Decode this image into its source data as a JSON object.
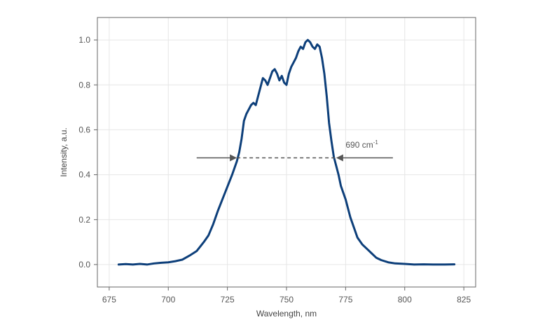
{
  "chart_data": {
    "type": "line",
    "xlabel": "Wavelength, nm",
    "ylabel": "Intensity, a.u.",
    "xlim": [
      670,
      830
    ],
    "ylim": [
      -0.1,
      1.1
    ],
    "xticks": [
      675,
      700,
      725,
      750,
      775,
      800,
      825
    ],
    "yticks": [
      0.0,
      0.2,
      0.4,
      0.6,
      0.8,
      1.0
    ],
    "xtick_labels": [
      "675",
      "700",
      "725",
      "750",
      "775",
      "800",
      "825"
    ],
    "ytick_labels": [
      "0.0",
      "0.2",
      "0.4",
      "0.6",
      "0.8",
      "1.0"
    ],
    "grid": true,
    "series_color": "#0d3f7a",
    "series": [
      {
        "x": [
          679,
          682,
          685,
          688,
          691,
          694,
          697,
          700,
          703,
          706,
          709,
          712,
          715,
          717,
          719,
          721,
          722.5,
          724,
          725.5,
          727,
          728,
          729,
          730,
          731,
          732,
          733,
          734,
          735,
          736,
          737,
          738,
          739,
          740,
          741,
          742,
          743,
          744,
          745,
          746,
          747,
          748,
          749,
          750,
          751,
          752,
          753,
          754,
          755,
          756,
          757,
          758,
          759,
          760,
          761,
          762,
          763,
          764,
          765,
          766,
          767,
          768,
          769,
          770,
          771,
          772,
          773,
          774,
          775,
          776,
          777,
          778,
          779,
          780,
          782,
          784,
          786,
          788,
          790,
          793,
          796,
          800,
          804,
          808,
          812,
          816,
          821
        ],
        "y": [
          0.0,
          0.002,
          0.0,
          0.003,
          0.0,
          0.005,
          0.008,
          0.01,
          0.015,
          0.022,
          0.04,
          0.06,
          0.1,
          0.13,
          0.18,
          0.24,
          0.28,
          0.32,
          0.36,
          0.4,
          0.43,
          0.46,
          0.5,
          0.56,
          0.64,
          0.67,
          0.69,
          0.71,
          0.72,
          0.71,
          0.75,
          0.79,
          0.83,
          0.82,
          0.8,
          0.83,
          0.86,
          0.87,
          0.85,
          0.82,
          0.84,
          0.81,
          0.8,
          0.85,
          0.88,
          0.9,
          0.92,
          0.95,
          0.97,
          0.96,
          0.99,
          1.0,
          0.99,
          0.97,
          0.96,
          0.98,
          0.97,
          0.92,
          0.85,
          0.75,
          0.63,
          0.55,
          0.48,
          0.44,
          0.4,
          0.35,
          0.32,
          0.29,
          0.25,
          0.21,
          0.18,
          0.15,
          0.12,
          0.09,
          0.07,
          0.05,
          0.03,
          0.02,
          0.01,
          0.005,
          0.003,
          0.0,
          0.001,
          0.0,
          0.0,
          0.001
        ]
      }
    ],
    "annotation": {
      "label_base": "690 cm",
      "label_sup": "-1",
      "level": 0.475,
      "left_edge": 729,
      "right_edge": 771,
      "left_arrow_start": 712,
      "right_arrow_start": 795,
      "label_x": 775,
      "label_y": 0.52
    }
  }
}
